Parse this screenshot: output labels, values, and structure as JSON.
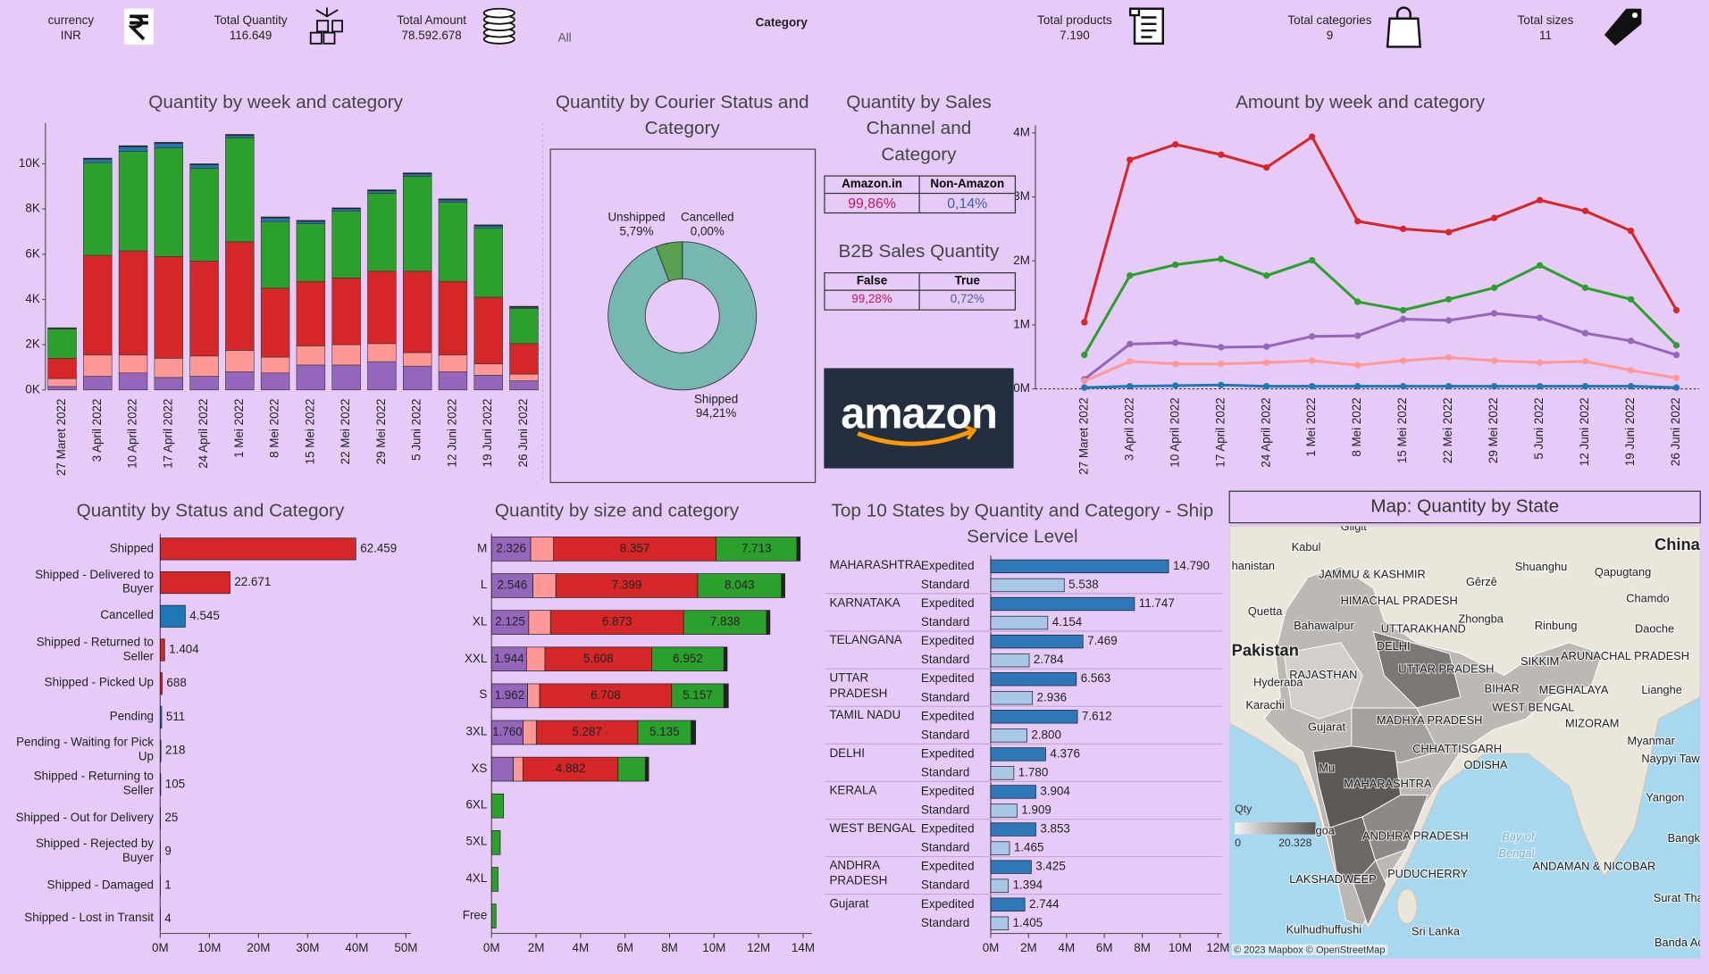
{
  "header": {
    "currency_label": "currency",
    "currency": "INR",
    "total_quantity_label": "Total Quantity",
    "total_quantity": "116.649",
    "total_amount_label": "Total Amount",
    "total_amount": "78.592.678",
    "category_filter": "All",
    "category_label": "Category",
    "total_products_label": "Total products",
    "total_products": "7.190",
    "total_categories_label": "Total categories",
    "total_categories": "9",
    "total_sizes_label": "Total sizes",
    "total_sizes": "11"
  },
  "chart_data": [
    {
      "type": "bar",
      "stacked": true,
      "title": "Quantity by week and category",
      "categories": [
        "27 Maret 2022",
        "3 April 2022",
        "10 April 2022",
        "17 April 2022",
        "24 April 2022",
        "1 Mei 2022",
        "8 Mei 2022",
        "15 Mei 2022",
        "22 Mei 2022",
        "29 Mei 2022",
        "5 Juni 2022",
        "12 Juni 2022",
        "19 Juni 2022",
        "26 Juni 2022"
      ],
      "series": [
        {
          "color": "#9467bd",
          "values": [
            150,
            600,
            750,
            550,
            600,
            800,
            750,
            1100,
            1100,
            1250,
            1050,
            800,
            650,
            400
          ]
        },
        {
          "color": "#ff9896",
          "values": [
            350,
            950,
            800,
            850,
            900,
            950,
            700,
            850,
            900,
            800,
            600,
            750,
            500,
            300
          ]
        },
        {
          "color": "#d62728",
          "values": [
            900,
            4400,
            4600,
            4500,
            4200,
            4800,
            3050,
            2850,
            2950,
            3200,
            3600,
            3250,
            2950,
            1350
          ]
        },
        {
          "color": "#2ca02c",
          "values": [
            1300,
            4100,
            4400,
            4800,
            4100,
            4600,
            2950,
            2550,
            2950,
            3450,
            4200,
            3500,
            3050,
            1550
          ]
        },
        {
          "color": "#1f77b4",
          "values": [
            20,
            150,
            200,
            200,
            150,
            100,
            150,
            100,
            100,
            100,
            100,
            100,
            100,
            50
          ]
        },
        {
          "color": "#222222",
          "values": [
            30,
            50,
            50,
            50,
            50,
            50,
            50,
            50,
            50,
            50,
            50,
            50,
            50,
            50
          ]
        }
      ],
      "ylim": [
        0,
        11800
      ],
      "yticks": [
        {
          "value": 0,
          "label": "0K"
        },
        {
          "value": 2000,
          "label": "2K"
        },
        {
          "value": 4000,
          "label": "4K"
        },
        {
          "value": 6000,
          "label": "6K"
        },
        {
          "value": 8000,
          "label": "8K"
        },
        {
          "value": 10000,
          "label": "10K"
        }
      ],
      "grid": false
    },
    {
      "type": "pie",
      "donut": true,
      "title": "Quantity by Courier Status and Category",
      "categories": [
        "Shipped",
        "Unshipped",
        "Cancelled"
      ],
      "values": [
        94.21,
        5.79,
        0
      ],
      "value_labels": [
        "94,21%",
        "5,79%",
        "0,00%"
      ],
      "colors": [
        "#76b7b2",
        "#59a14f",
        "#2e6b2e"
      ]
    },
    {
      "type": "line",
      "title": "Amount by week and category",
      "categories": [
        "27 Maret 2022",
        "3 April 2022",
        "10 April 2022",
        "17 April 2022",
        "24 April 2022",
        "1 Mei 2022",
        "8 Mei 2022",
        "15 Mei 2022",
        "22 Mei 2022",
        "29 Mei 2022",
        "5 Juni 2022",
        "12 Juni 2022",
        "19 Juni 2022",
        "26 Juni 2022"
      ],
      "series": [
        {
          "color": "#d62728",
          "values": [
            1040000,
            3580000,
            3820000,
            3660000,
            3460000,
            3940000,
            2620000,
            2500000,
            2450000,
            2670000,
            2950000,
            2780000,
            2470000,
            1230000
          ]
        },
        {
          "color": "#2ca02c",
          "values": [
            530000,
            1770000,
            1940000,
            2030000,
            1770000,
            2010000,
            1360000,
            1230000,
            1400000,
            1580000,
            1930000,
            1580000,
            1400000,
            680000
          ]
        },
        {
          "color": "#9467bd",
          "values": [
            150000,
            700000,
            720000,
            650000,
            660000,
            820000,
            830000,
            1090000,
            1070000,
            1180000,
            1110000,
            870000,
            750000,
            530000
          ]
        },
        {
          "color": "#ff9896",
          "values": [
            120000,
            430000,
            390000,
            390000,
            410000,
            440000,
            370000,
            440000,
            490000,
            440000,
            410000,
            430000,
            290000,
            170000
          ]
        },
        {
          "color": "#1f77b4",
          "values": [
            20000,
            40000,
            50000,
            60000,
            40000,
            40000,
            40000,
            40000,
            40000,
            40000,
            40000,
            40000,
            40000,
            20000
          ]
        }
      ],
      "ylim": [
        0,
        4120000
      ],
      "yticks": [
        {
          "value": 0,
          "label": "0M"
        },
        {
          "value": 1000000,
          "label": "1M"
        },
        {
          "value": 2000000,
          "label": "2M"
        },
        {
          "value": 3000000,
          "label": "3M"
        },
        {
          "value": 4000000,
          "label": "4M"
        }
      ],
      "grid": false
    },
    {
      "type": "hbar",
      "title": "Quantity by Status and Category",
      "categories": [
        "Shipped",
        "Shipped - Delivered to Buyer",
        "Cancelled",
        "Shipped - Returned to Seller",
        "Shipped - Picked Up",
        "Pending",
        "Pending - Waiting for Pick Up",
        "Shipped - Returning to Seller",
        "Shipped - Out for Delivery",
        "Shipped - Rejected by Buyer",
        "Shipped - Damaged",
        "Shipped - Lost in Transit"
      ],
      "values": [
        39800000,
        14200000,
        5100000,
        900000,
        400000,
        300000,
        150000,
        100000,
        40000,
        20000,
        10000,
        5000
      ],
      "data_labels": [
        "62.459",
        "22.671",
        "4.545",
        "1.404",
        "688",
        "511",
        "218",
        "105",
        "25",
        "9",
        "1",
        "4"
      ],
      "colors": [
        "#d62728",
        "#d62728",
        "#1f77b4",
        "#d62728",
        "#d62728",
        "#1f77b4",
        "#1f77b4",
        "#d62728",
        "#d62728",
        "#d62728",
        "#d62728",
        "#d62728"
      ],
      "xlim": [
        0,
        51000000
      ],
      "xticks": [
        {
          "value": 0,
          "label": "0M"
        },
        {
          "value": 10000000,
          "label": "10M"
        },
        {
          "value": 20000000,
          "label": "20M"
        },
        {
          "value": 30000000,
          "label": "30M"
        },
        {
          "value": 40000000,
          "label": "40M"
        },
        {
          "value": 50000000,
          "label": "50M"
        }
      ]
    },
    {
      "type": "hbar",
      "stacked": true,
      "title": "Quantity by size and category",
      "categories": [
        "M",
        "L",
        "XL",
        "XXL",
        "S",
        "3XL",
        "XS",
        "6XL",
        "5XL",
        "4XL",
        "Free"
      ],
      "series": [
        {
          "color": "#9467bd",
          "values": [
            1760000,
            1860000,
            1670000,
            1570000,
            1620000,
            1420000,
            980000,
            0,
            0,
            0,
            0
          ],
          "data_labels": [
            "2.326",
            "2.546",
            "2.125",
            "1.944",
            "1.962",
            "1.760",
            null,
            null,
            null,
            null,
            null
          ]
        },
        {
          "color": "#ff9896",
          "values": [
            1030000,
            1030000,
            980000,
            830000,
            540000,
            590000,
            440000,
            0,
            0,
            0,
            0
          ]
        },
        {
          "color": "#d62728",
          "values": [
            7300000,
            6370000,
            5980000,
            4800000,
            5930000,
            4560000,
            4260000,
            0,
            0,
            0,
            0
          ],
          "data_labels": [
            "8.357",
            "7.399",
            "6.873",
            "5.608",
            "6.708",
            "5.287",
            "4.882",
            null,
            null,
            null,
            null
          ]
        },
        {
          "color": "#2ca02c",
          "values": [
            3630000,
            3770000,
            3730000,
            3240000,
            2350000,
            2400000,
            1230000,
            540000,
            390000,
            290000,
            200000
          ],
          "data_labels": [
            "7.713",
            "8.043",
            "7.838",
            "6.952",
            "5.157",
            "5.135",
            null,
            null,
            null,
            null,
            null
          ]
        },
        {
          "color": "#222222",
          "values": [
            150000,
            150000,
            150000,
            150000,
            200000,
            200000,
            150000,
            0,
            0,
            0,
            0
          ]
        }
      ],
      "xlim": [
        0,
        14400000
      ],
      "xticks": [
        {
          "value": 0,
          "label": "0M"
        },
        {
          "value": 2000000,
          "label": "2M"
        },
        {
          "value": 4000000,
          "label": "4M"
        },
        {
          "value": 6000000,
          "label": "6M"
        },
        {
          "value": 8000000,
          "label": "8M"
        },
        {
          "value": 10000000,
          "label": "10M"
        },
        {
          "value": 12000000,
          "label": "12M"
        },
        {
          "value": 14000000,
          "label": "14M"
        }
      ]
    },
    {
      "type": "hbar",
      "title": "Top 10 States by Quantity and Category - Ship Service Level",
      "categories": [
        "MAHARASHTRA",
        "KARNATAKA",
        "TELANGANA",
        "UTTAR PRADESH",
        "TAMIL NADU",
        "DELHI",
        "KERALA",
        "WEST BENGAL",
        "ANDHRA PRADESH",
        "Gujarat"
      ],
      "series": [
        {
          "name": "Expedited",
          "color": "#2e78b7",
          "values": [
            9390000,
            7590000,
            4870000,
            4520000,
            4580000,
            2900000,
            2380000,
            2380000,
            2140000,
            1800000
          ],
          "data_labels": [
            "14.790",
            "11.747",
            "7.469",
            "6.563",
            "7.612",
            "4.376",
            "3.904",
            "3.853",
            "3.425",
            "2.744"
          ]
        },
        {
          "name": "Standard",
          "color": "#a9c8e8",
          "values": [
            3880000,
            3010000,
            2030000,
            2200000,
            1910000,
            1220000,
            1390000,
            990000,
            930000,
            930000
          ],
          "data_labels": [
            "5.538",
            "4.154",
            "2.784",
            "2.936",
            "2.800",
            "1.780",
            "1.909",
            "1.465",
            "1.394",
            "1.405"
          ]
        }
      ],
      "xlim": [
        0,
        12200000
      ],
      "xticks": [
        {
          "value": 0,
          "label": "0M"
        },
        {
          "value": 2000000,
          "label": "2M"
        },
        {
          "value": 4000000,
          "label": "4M"
        },
        {
          "value": 6000000,
          "label": "6M"
        },
        {
          "value": 8000000,
          "label": "8M"
        },
        {
          "value": 10000000,
          "label": "10M"
        },
        {
          "value": 12000000,
          "label": "12M"
        }
      ]
    }
  ],
  "sales_channel": {
    "title": "Quantity by Sales Channel and Category",
    "columns": [
      "Amazon.in",
      "Non-Amazon"
    ],
    "cells": [
      "99,86%",
      "0,14%"
    ]
  },
  "b2b": {
    "title": "B2B Sales Quantity",
    "columns": [
      "False",
      "True"
    ],
    "cells": [
      "99,28%",
      "0,72%"
    ]
  },
  "logo": "amazon",
  "map": {
    "title": "Map: Quantity by State",
    "legend_title": "Qty",
    "legend_min": 0,
    "legend_max": {
      "value": 20328,
      "label": "20.328"
    },
    "attribution": "© 2023 Mapbox © OpenStreetMap",
    "labels": [
      "Gilgit",
      "Kabul",
      "hanistan",
      "JAMMU & KASHMIR",
      "Shuanghu",
      "Qapugtang",
      "Gêrzê",
      "China",
      "Quetta",
      "HIMACHAL PRADESH",
      "Chamdo",
      "Bahawalpur",
      "UTTARAKHAND",
      "Zhongba",
      "Rinbung",
      "Daoche",
      "Pakistan",
      "DELHI",
      "SIKKIM",
      "ARUNACHAL PRADESH",
      "Hyderaba",
      "RAJASTHAN",
      "UTTAR PRADESH",
      "BIHAR",
      "MEGHALAYA",
      "Lianghe",
      "Karachi",
      "WEST BENGAL",
      "Gujarat",
      "MADHYA PRADESH",
      "MIZORAM",
      "Myanmar",
      "CHHATTISGARH",
      "Naypyi Taw",
      "ODISHA",
      "Mu",
      "MAHARASHTRA",
      "Yangon",
      "goa",
      "ANDHRA PRADESH",
      "Bay of",
      "Bengal",
      "Bangk",
      "PUDUCHERRY",
      "ANDAMAN & NICOBAR",
      "LAKSHADWEEP",
      "Surat Than",
      "Sri Lanka",
      "Kulhudhuffushi",
      "Banda Aceh"
    ]
  }
}
